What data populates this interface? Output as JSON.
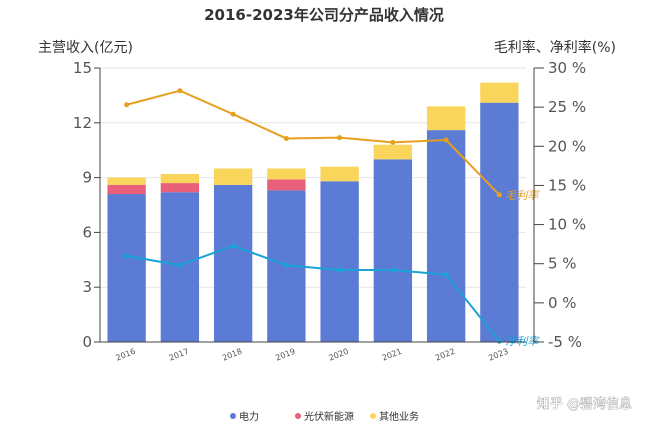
{
  "credit": "知乎 @碧湾信息",
  "chart_data": {
    "type": "bar",
    "stacked": true,
    "title": "2016-2023年公司分产品收入情况",
    "categories": [
      "2016",
      "2017",
      "2018",
      "2019",
      "2020",
      "2021",
      "2022",
      "2023"
    ],
    "y_left": {
      "label": "主营收入(亿元)",
      "lim": [
        0,
        15
      ],
      "ticks": [
        0,
        3,
        6,
        9,
        12,
        15
      ],
      "tick_labels": [
        "0",
        "3",
        "6",
        "9",
        "12",
        "15"
      ]
    },
    "y_right": {
      "label": "毛利率、净利率(%)",
      "lim": [
        -5,
        30
      ],
      "ticks": [
        -5,
        0,
        5,
        10,
        15,
        20,
        25,
        30
      ],
      "tick_labels": [
        "-5 %",
        "0 %",
        "5 %",
        "10 %",
        "15 %",
        "20 %",
        "25 %",
        "30 %"
      ]
    },
    "grid": true,
    "legend_position": "bottom",
    "series": [
      {
        "name": "电力",
        "type": "bar",
        "axis": "left",
        "color": "#5B7BD5",
        "values": [
          8.1,
          8.2,
          8.6,
          8.3,
          8.8,
          10.0,
          11.6,
          13.1
        ]
      },
      {
        "name": "光伏新能源",
        "type": "bar",
        "axis": "left",
        "color": "#E8607A",
        "values": [
          0.5,
          0.5,
          0.0,
          0.6,
          0.0,
          0.0,
          0.0,
          0.0
        ]
      },
      {
        "name": "其他业务",
        "type": "bar",
        "axis": "left",
        "color": "#FAD55C",
        "values": [
          0.4,
          0.5,
          0.9,
          0.6,
          0.8,
          0.8,
          1.3,
          1.1
        ]
      },
      {
        "name": "毛利率",
        "type": "line",
        "axis": "right",
        "color": "#E6A020",
        "label": "毛利率",
        "values": [
          25.3,
          27.1,
          24.1,
          21.0,
          21.1,
          20.5,
          20.8,
          13.8
        ]
      },
      {
        "name": "净利率",
        "type": "line",
        "axis": "right",
        "color": "#1AA3D6",
        "label": "净利率",
        "values": [
          6.0,
          4.8,
          7.3,
          4.8,
          4.2,
          4.2,
          3.6,
          -4.9
        ]
      }
    ]
  }
}
